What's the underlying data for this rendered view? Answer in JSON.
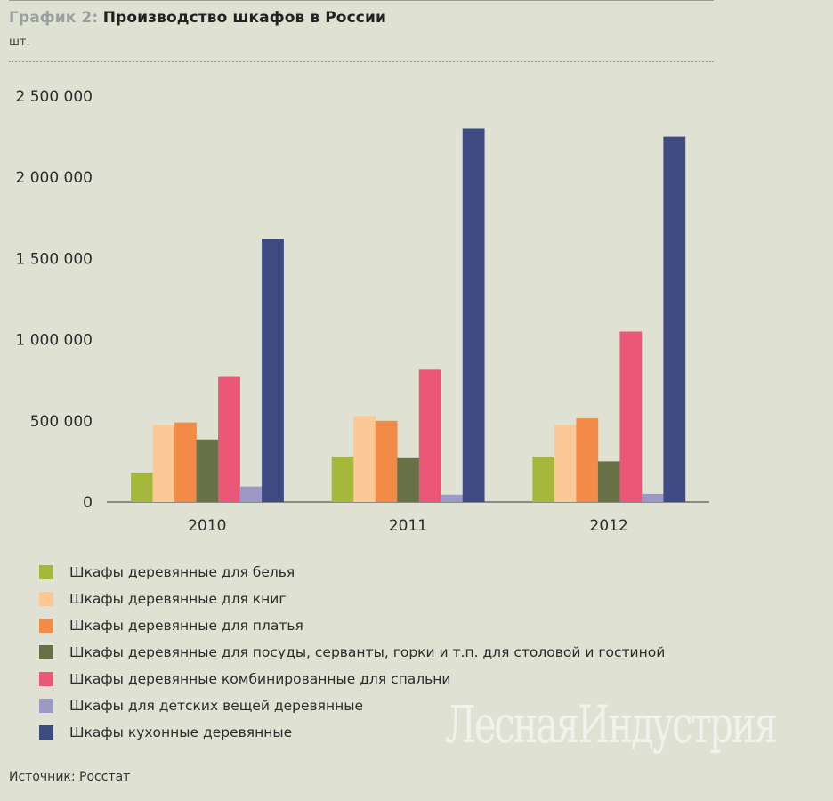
{
  "title": {
    "prefix": "График 2:",
    "text": "Производство шкафов в России"
  },
  "unit": "шт.",
  "source": "Источник: Росстат",
  "watermark": "ЛеснаяИндустрия",
  "chart_data": {
    "type": "bar",
    "categories": [
      "2010",
      "2011",
      "2012"
    ],
    "ylim": [
      0,
      2500000
    ],
    "yticks": [
      0,
      500000,
      1000000,
      1500000,
      2000000,
      2500000
    ],
    "ytick_labels": [
      "0",
      "500 000",
      "1 000 000",
      "1 500 000",
      "2 000 000",
      "2 500 000"
    ],
    "grid": false,
    "legend_position": "bottom",
    "series": [
      {
        "name": "Шкафы деревянные для белья",
        "color": "#a6b83b",
        "values": [
          180000,
          280000,
          280000
        ]
      },
      {
        "name": "Шкафы деревянные для книг",
        "color": "#fcc895",
        "values": [
          475000,
          530000,
          475000
        ]
      },
      {
        "name": "Шкафы деревянные для платья",
        "color": "#f28a48",
        "values": [
          490000,
          500000,
          515000
        ]
      },
      {
        "name": "Шкафы деревянные для посуды, серванты, горки и т.п. для столовой и гостиной",
        "color": "#667245",
        "values": [
          385000,
          270000,
          250000
        ]
      },
      {
        "name": "Шкафы деревянные комбинированные для спальни",
        "color": "#ea5777",
        "values": [
          770000,
          815000,
          1050000
        ]
      },
      {
        "name": "Шкафы для детских вещей деревянные",
        "color": "#9b9ac7",
        "values": [
          95000,
          45000,
          50000
        ]
      },
      {
        "name": "Шкафы кухонные деревянные",
        "color": "#3d4b82",
        "values": [
          1620000,
          2300000,
          2250000
        ]
      }
    ]
  }
}
